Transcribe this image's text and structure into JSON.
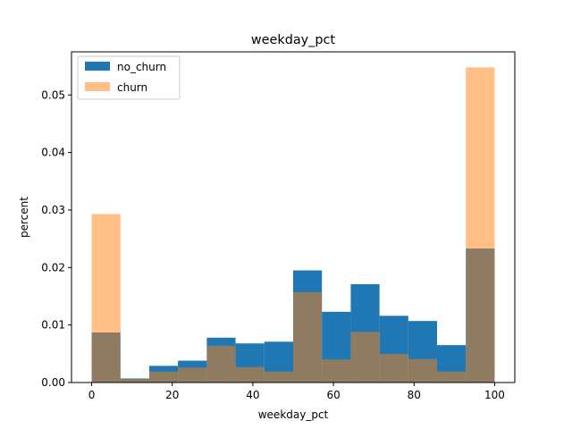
{
  "chart_data": {
    "type": "bar",
    "title": "weekday_pct",
    "xlabel": "weekday_pct",
    "ylabel": "percent",
    "xlim": [
      -5,
      105
    ],
    "ylim": [
      0,
      0.0575
    ],
    "xticks": [
      0,
      20,
      40,
      60,
      80,
      100
    ],
    "yticks": [
      0.0,
      0.01,
      0.02,
      0.03,
      0.04,
      0.05
    ],
    "ytick_labels": [
      "0.00",
      "0.01",
      "0.02",
      "0.03",
      "0.04",
      "0.05"
    ],
    "bin_edges": [
      0,
      7.14,
      14.29,
      21.43,
      28.57,
      35.71,
      42.86,
      50,
      57.14,
      64.29,
      71.43,
      78.57,
      85.71,
      92.86,
      100
    ],
    "legend_position": "top-left",
    "series": [
      {
        "name": "no_churn",
        "color": "#1f77b4",
        "opacity": 1.0,
        "values": [
          0.0087,
          0.0007,
          0.0029,
          0.0038,
          0.0078,
          0.0068,
          0.0071,
          0.0195,
          0.0123,
          0.0171,
          0.0116,
          0.0107,
          0.0065,
          0.0233
        ]
      },
      {
        "name": "churn",
        "color": "#ff7f0e",
        "opacity": 0.5,
        "values": [
          0.0293,
          0.0006,
          0.0019,
          0.0026,
          0.0064,
          0.0027,
          0.0019,
          0.0157,
          0.004,
          0.0088,
          0.005,
          0.0041,
          0.0019,
          0.0548
        ]
      }
    ]
  }
}
